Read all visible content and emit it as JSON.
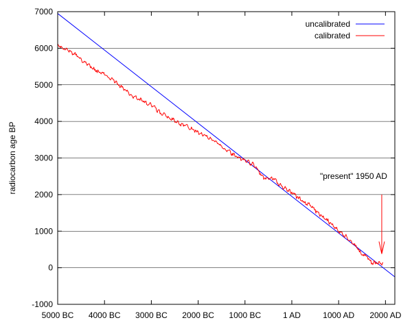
{
  "chart_data": {
    "type": "line",
    "title": "",
    "xlabel": "",
    "ylabel": "radiocarbon age BP",
    "xlim": [
      -5000,
      2200
    ],
    "ylim": [
      -1000,
      7000
    ],
    "grid": {
      "horizontal": true,
      "vertical": false
    },
    "legend": {
      "position": "top-right"
    },
    "x_ticks": [
      {
        "value": -5000,
        "label": "5000 BC"
      },
      {
        "value": -4000,
        "label": "4000 BC"
      },
      {
        "value": -3000,
        "label": "3000 BC"
      },
      {
        "value": -2000,
        "label": "2000 BC"
      },
      {
        "value": -1000,
        "label": "1000 BC"
      },
      {
        "value": 0,
        "label": "1 AD"
      },
      {
        "value": 1000,
        "label": "1000 AD"
      },
      {
        "value": 2000,
        "label": "2000 AD"
      }
    ],
    "y_ticks": [
      {
        "value": -1000,
        "label": "-1000"
      },
      {
        "value": 0,
        "label": "0"
      },
      {
        "value": 1000,
        "label": "1000"
      },
      {
        "value": 2000,
        "label": "2000"
      },
      {
        "value": 3000,
        "label": "3000"
      },
      {
        "value": 4000,
        "label": "4000"
      },
      {
        "value": 5000,
        "label": "5000"
      },
      {
        "value": 6000,
        "label": "6000"
      },
      {
        "value": 7000,
        "label": "7000"
      }
    ],
    "series": [
      {
        "name": "uncalibrated",
        "color": "#0000ff",
        "x": [
          -5000,
          2200
        ],
        "y": [
          6950,
          -250
        ]
      },
      {
        "name": "calibrated",
        "color": "#ff0000",
        "x": [
          -5000,
          -4800,
          -4600,
          -4400,
          -4200,
          -4000,
          -3800,
          -3600,
          -3400,
          -3200,
          -3000,
          -2800,
          -2600,
          -2400,
          -2200,
          -2000,
          -1800,
          -1600,
          -1400,
          -1200,
          -1000,
          -800,
          -600,
          -400,
          -200,
          0,
          200,
          400,
          600,
          800,
          1000,
          1200,
          1400,
          1500,
          1600,
          1700,
          1800,
          1900,
          1950
        ],
        "y": [
          6080,
          5950,
          5800,
          5600,
          5400,
          5280,
          5120,
          4900,
          4700,
          4560,
          4460,
          4220,
          4100,
          3920,
          3850,
          3700,
          3580,
          3420,
          3220,
          3050,
          2950,
          2800,
          2450,
          2450,
          2200,
          2050,
          1850,
          1700,
          1450,
          1250,
          1000,
          800,
          550,
          350,
          320,
          150,
          130,
          100,
          130
        ]
      }
    ],
    "annotations": [
      {
        "text": "\"present\" 1950 AD",
        "x": 1950,
        "arrow_from_y": 2000,
        "arrow_to_y": 380,
        "color": "#ff0000"
      }
    ]
  }
}
